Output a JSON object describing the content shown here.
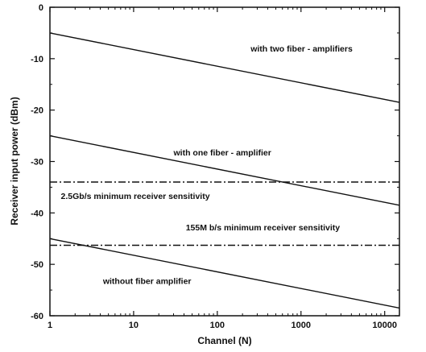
{
  "chart_data": {
    "type": "line",
    "title": "",
    "xlabel": "Channel (N)",
    "ylabel": "Receiver input power (dBm)",
    "x_scale": "log",
    "xlim": [
      1,
      15000
    ],
    "ylim": [
      -60,
      0
    ],
    "x_ticks": [
      1,
      10,
      100,
      1000,
      10000
    ],
    "x_tick_labels": [
      "1",
      "10",
      "100",
      "1000",
      "10000"
    ],
    "y_ticks": [
      0,
      -10,
      -20,
      -30,
      -40,
      -50,
      -60
    ],
    "y_tick_labels": [
      "0",
      "-10",
      "-20",
      "-30",
      "-40",
      "-50",
      "-60"
    ],
    "grid": false,
    "legend": "none",
    "series": [
      {
        "style": "solid",
        "x": [
          1,
          15000
        ],
        "y": [
          -5,
          -18.5
        ]
      },
      {
        "style": "solid",
        "x": [
          1,
          15000
        ],
        "y": [
          -25,
          -38.5
        ]
      },
      {
        "style": "solid",
        "x": [
          1,
          15000
        ],
        "y": [
          -45,
          -58.5
        ]
      },
      {
        "style": "dash-dot",
        "x": [
          1,
          15000
        ],
        "y": [
          -34,
          -34
        ]
      },
      {
        "style": "dash-dot",
        "x": [
          1,
          15000
        ],
        "y": [
          -46.3,
          -46.3
        ]
      }
    ],
    "annotations": [
      {
        "text": "with  two fiber - amplifiers",
        "x": 250,
        "y": -8.6
      },
      {
        "text": "with  one fiber - amplifier",
        "x": 30,
        "y": -28.8
      },
      {
        "text": "2.5Gb/s  minimum  receiver  sensitivity",
        "x": 1.35,
        "y": -37.3
      },
      {
        "text": "155M b/s  minimum  receiver  sensitivity",
        "x": 42,
        "y": -43.4
      },
      {
        "text": "without  fiber  amplifier",
        "x": 4.3,
        "y": -53.8
      }
    ]
  }
}
